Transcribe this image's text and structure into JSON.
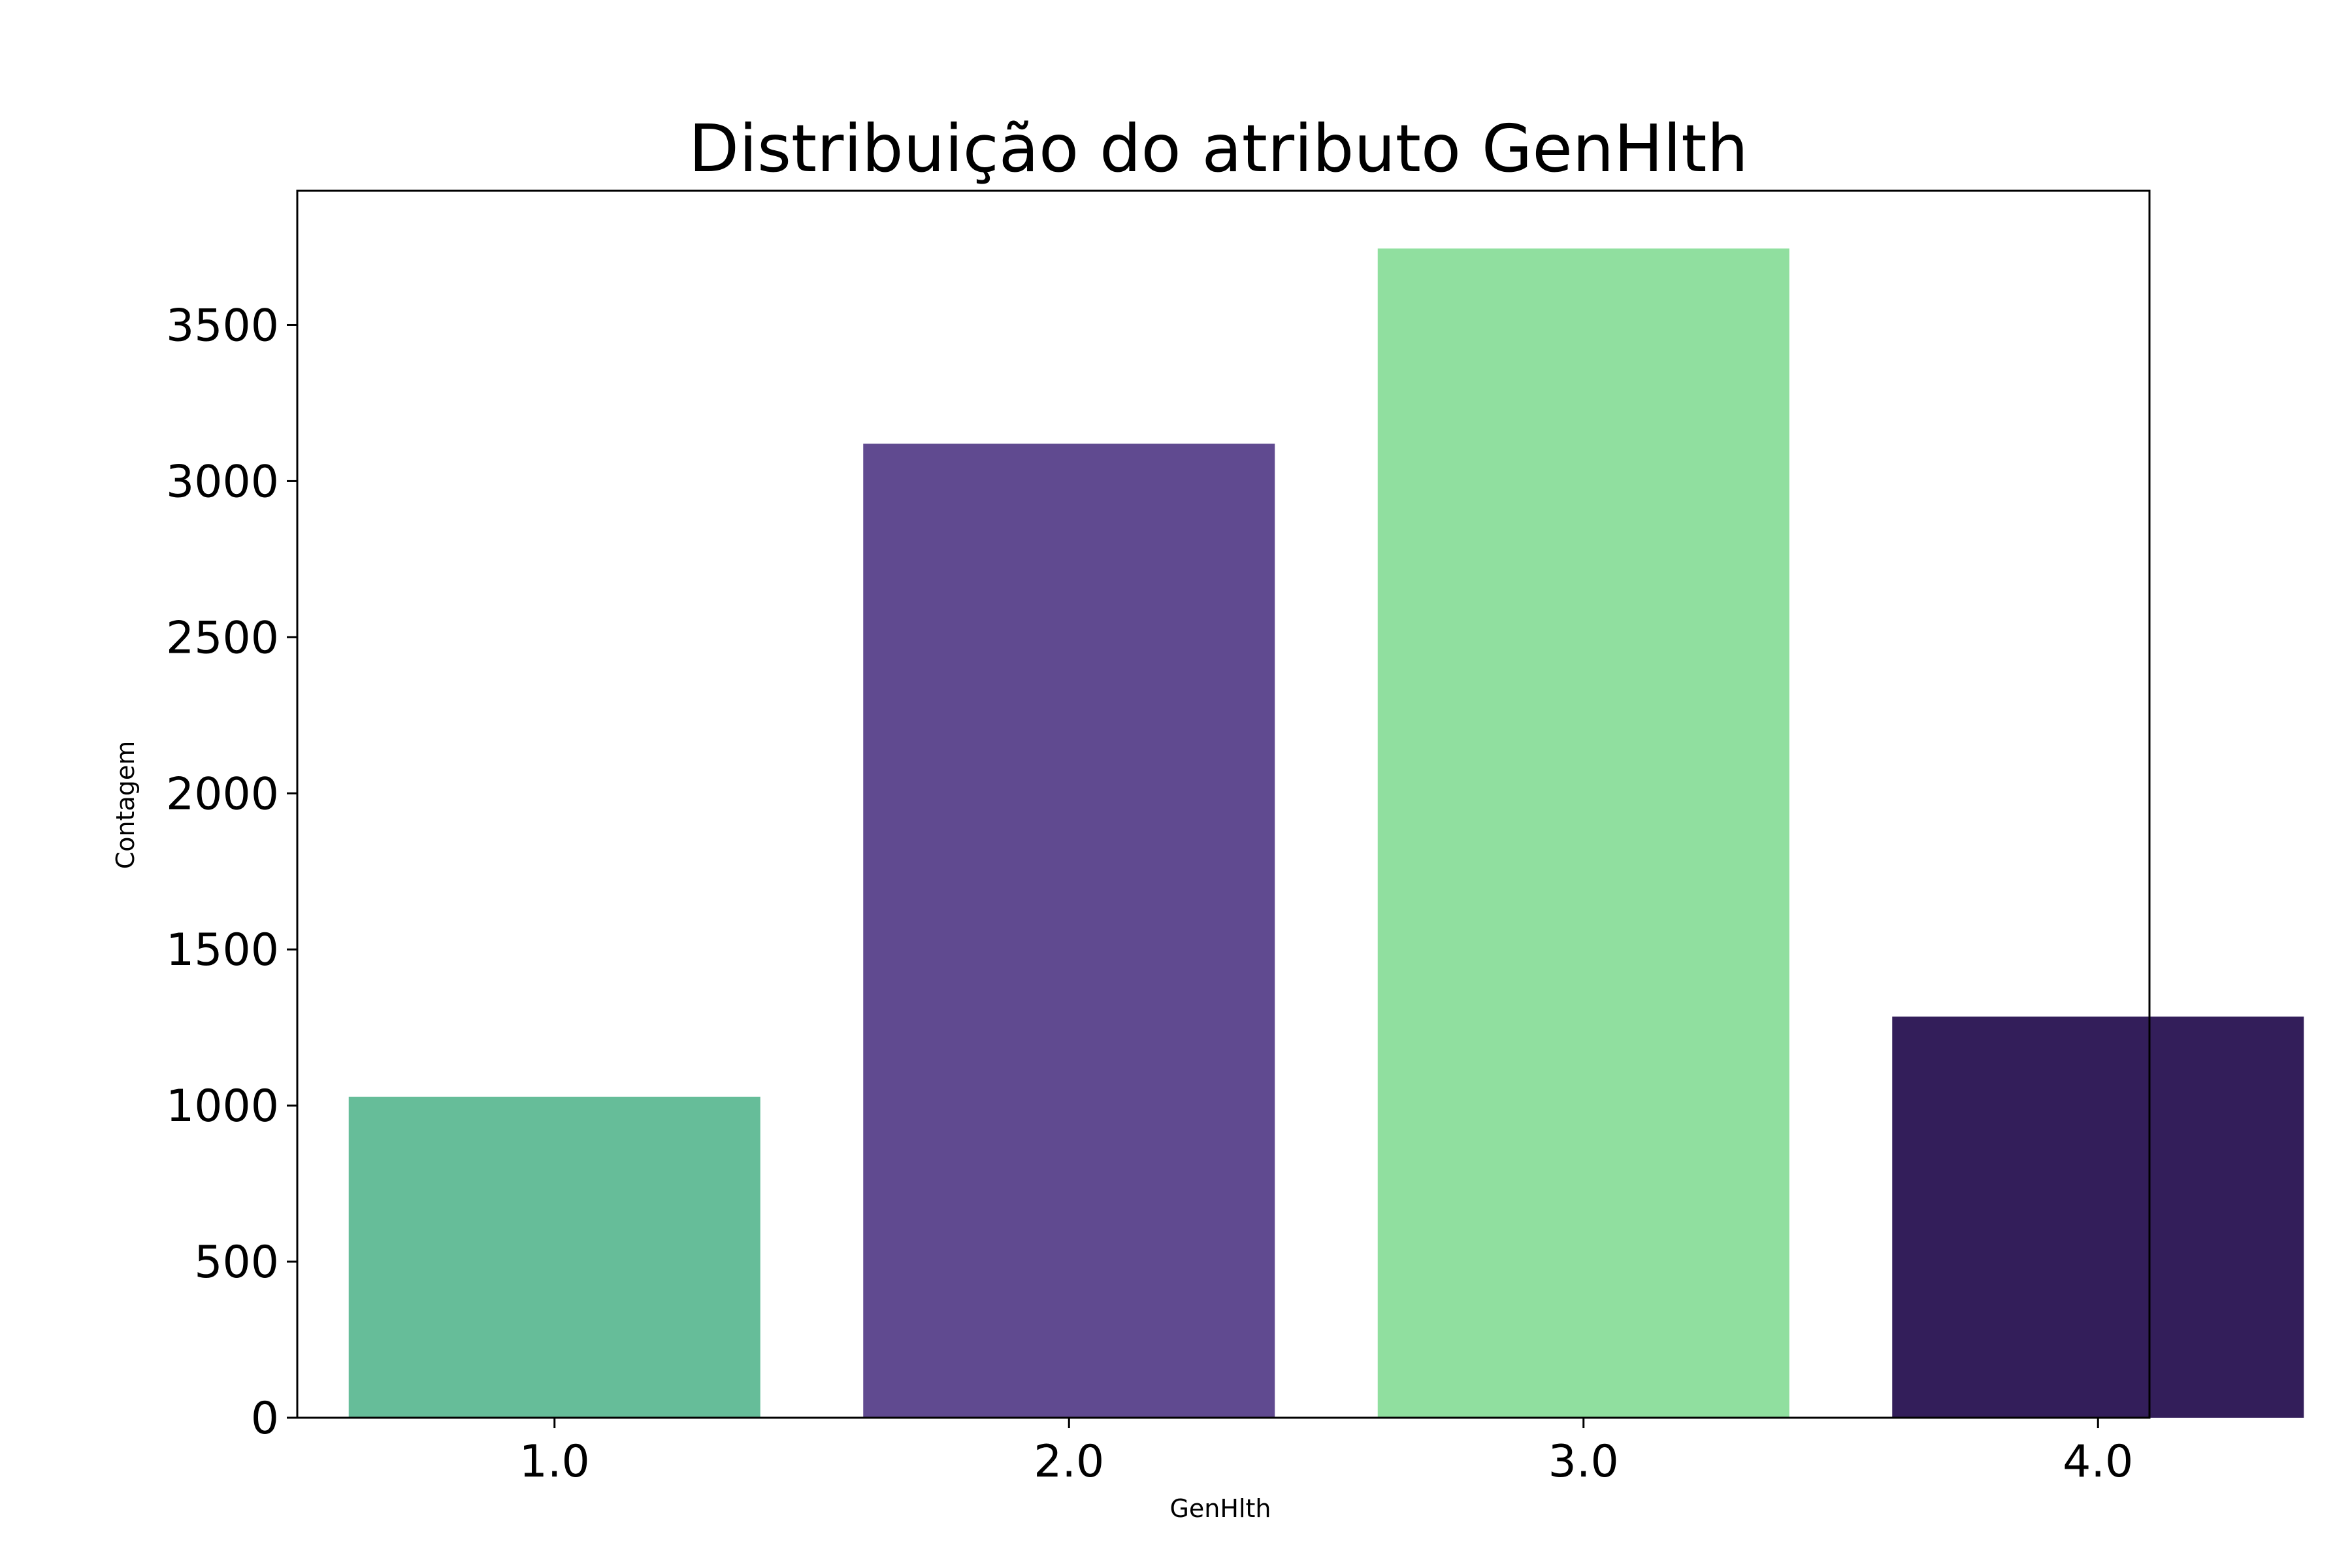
{
  "chart_data": {
    "type": "bar",
    "title": "Distribuição do atributo GenHlth",
    "xlabel": "GenHlth",
    "ylabel": "Contagem",
    "categories": [
      "1.0",
      "2.0",
      "3.0",
      "4.0"
    ],
    "values": [
      1028,
      3120,
      3745,
      1285
    ],
    "colors": [
      "#66bd99",
      "#604a90",
      "#90df9f",
      "#331e5a"
    ],
    "ylim": [
      0,
      3930
    ],
    "yticks": [
      0,
      500,
      1000,
      1500,
      2000,
      2500,
      3000,
      3500
    ],
    "grid": false,
    "legend": "none"
  }
}
